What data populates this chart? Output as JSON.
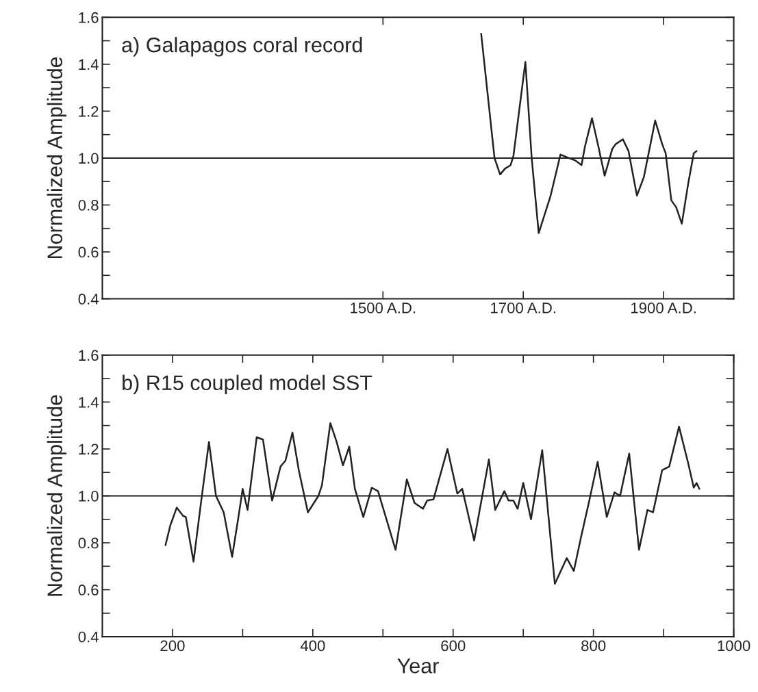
{
  "chart_data": [
    {
      "type": "line",
      "ylabel": "Normalized Amplitude",
      "annotations": [
        "a) Galapagos coral record"
      ],
      "xlim": [
        1100,
        2000
      ],
      "xticks": [
        {
          "value": 1500,
          "label": "1500 A.D."
        },
        {
          "value": 1700,
          "label": "1700 A.D."
        },
        {
          "value": 1900,
          "label": "1900 A.D."
        }
      ],
      "ylim": [
        0.4,
        1.6
      ],
      "yticks": [
        0.4,
        {
          "value": 0.5,
          "label": null
        },
        0.6,
        {
          "value": 0.7,
          "label": null
        },
        0.8,
        {
          "value": 0.9,
          "label": null
        },
        {
          "value": 1.0,
          "label": "1.0"
        },
        {
          "value": 1.1,
          "label": null
        },
        1.2,
        {
          "value": 1.3,
          "label": null
        },
        1.4,
        {
          "value": 1.5,
          "label": null
        },
        1.6
      ],
      "ref_lines": [
        {
          "axis": "y",
          "value": 1.0,
          "color": "#222222"
        }
      ],
      "grid": false,
      "legend": false,
      "marker": "none",
      "line_style": "solid",
      "series": [
        {
          "color": "#222222",
          "x": [
            1640,
            1659,
            1667,
            1674,
            1682,
            1686,
            1703,
            1712,
            1722,
            1739,
            1753,
            1765,
            1774,
            1783,
            1788,
            1798,
            1807,
            1816,
            1827,
            1832,
            1842,
            1850,
            1862,
            1872,
            1888,
            1898,
            1903,
            1911,
            1918,
            1926,
            1935,
            1943,
            1947
          ],
          "values": [
            1.53,
            1.0,
            0.93,
            0.955,
            0.97,
            1.01,
            1.41,
            1.0,
            0.68,
            0.84,
            1.015,
            1.0,
            0.99,
            0.97,
            1.05,
            1.17,
            1.05,
            0.925,
            1.04,
            1.06,
            1.08,
            1.03,
            0.84,
            0.92,
            1.16,
            1.06,
            1.02,
            0.82,
            0.79,
            0.72,
            0.89,
            1.02,
            1.03
          ]
        }
      ]
    },
    {
      "type": "line",
      "ylabel": "Normalized Amplitude",
      "xlabel": "Year",
      "annotations": [
        "b) R15 coupled model SST"
      ],
      "xlim": [
        100,
        1000
      ],
      "xticks": [
        200,
        {
          "value": 300,
          "label": null
        },
        400,
        {
          "value": 500,
          "label": null
        },
        600,
        {
          "value": 700,
          "label": null
        },
        800,
        {
          "value": 900,
          "label": null
        },
        1000
      ],
      "ylim": [
        0.4,
        1.6
      ],
      "yticks": [
        0.4,
        {
          "value": 0.5,
          "label": null
        },
        0.6,
        {
          "value": 0.7,
          "label": null
        },
        0.8,
        {
          "value": 0.9,
          "label": null
        },
        {
          "value": 1.0,
          "label": "1.0"
        },
        {
          "value": 1.1,
          "label": null
        },
        1.2,
        {
          "value": 1.3,
          "label": null
        },
        1.4,
        {
          "value": 1.5,
          "label": null
        },
        1.6
      ],
      "ref_lines": [
        {
          "axis": "y",
          "value": 1.0,
          "color": "#222222"
        }
      ],
      "grid": false,
      "legend": false,
      "marker": "none",
      "line_style": "solid",
      "series": [
        {
          "color": "#222222",
          "x": [
            190,
            197,
            206,
            215,
            219,
            230,
            241,
            252,
            262,
            273,
            285,
            294,
            300,
            307,
            320,
            329,
            342,
            354,
            361,
            371,
            380,
            393,
            408,
            413,
            425,
            434,
            443,
            452,
            460,
            472,
            484,
            493,
            504,
            518,
            534,
            545,
            557,
            563,
            572,
            592,
            606,
            613,
            630,
            651,
            660,
            673,
            679,
            686,
            692,
            700,
            711,
            727,
            745,
            762,
            772,
            782,
            793,
            806,
            819,
            830,
            838,
            851,
            865,
            877,
            885,
            898,
            908,
            922,
            935,
            943,
            947,
            951
          ],
          "values": [
            0.79,
            0.875,
            0.95,
            0.915,
            0.91,
            0.72,
            0.98,
            1.23,
            1.0,
            0.93,
            0.74,
            0.91,
            1.03,
            0.94,
            1.25,
            1.24,
            0.98,
            1.125,
            1.15,
            1.27,
            1.11,
            0.93,
            1.0,
            1.045,
            1.31,
            1.23,
            1.13,
            1.21,
            1.03,
            0.91,
            1.035,
            1.02,
            0.91,
            0.77,
            1.07,
            0.97,
            0.945,
            0.98,
            0.985,
            1.2,
            1.01,
            1.03,
            0.81,
            1.155,
            0.94,
            1.02,
            0.98,
            0.98,
            0.945,
            1.055,
            0.9,
            1.195,
            0.625,
            0.735,
            0.68,
            0.82,
            0.965,
            1.145,
            0.91,
            1.015,
            1.0,
            1.18,
            0.77,
            0.94,
            0.93,
            1.11,
            1.125,
            1.295,
            1.14,
            1.035,
            1.055,
            1.03
          ]
        }
      ]
    }
  ]
}
